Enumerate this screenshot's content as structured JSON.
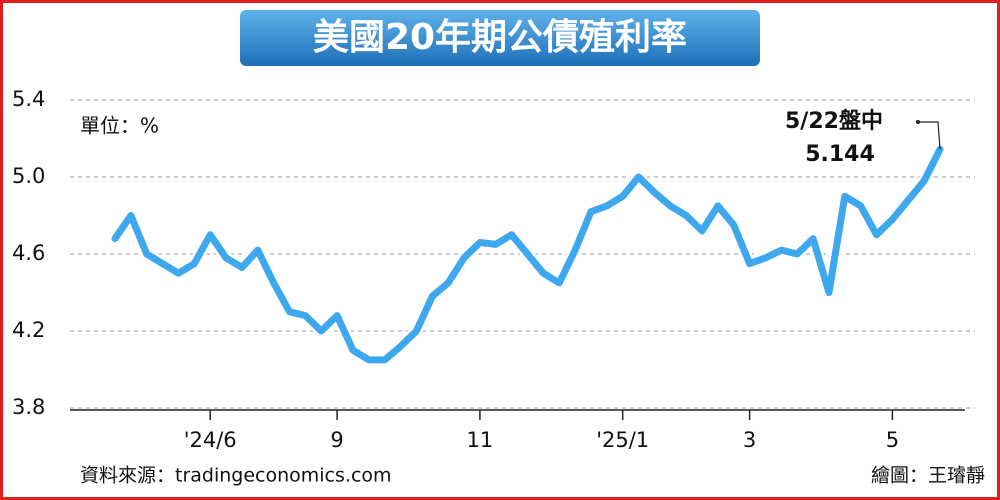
{
  "chart_data": {
    "type": "line",
    "title": "美國20年期公債殖利率",
    "unit_label": "單位：%",
    "annotation": "5/22盤中",
    "source": "資料來源：tradingeconomics.com",
    "credit": "繪圖：王璿靜",
    "categories": [
      null,
      null,
      null,
      null,
      null,
      null,
      "'24/6",
      null,
      null,
      null,
      null,
      null,
      null,
      null,
      "9",
      null,
      null,
      null,
      null,
      null,
      null,
      null,
      null,
      "11",
      null,
      null,
      null,
      null,
      null,
      null,
      null,
      null,
      "'25/1",
      null,
      null,
      null,
      null,
      null,
      null,
      null,
      "3",
      null,
      null,
      null,
      null,
      null,
      null,
      null,
      null,
      "5",
      null,
      null,
      null
    ],
    "series": [
      {
        "name": "20年期公債殖利率",
        "color": "#3ea8ef",
        "values": [
          4.68,
          4.8,
          4.6,
          4.55,
          4.5,
          4.55,
          4.7,
          4.58,
          4.53,
          4.62,
          4.45,
          4.3,
          4.28,
          4.2,
          4.28,
          4.1,
          4.05,
          4.05,
          4.12,
          4.2,
          4.38,
          4.45,
          4.58,
          4.66,
          4.65,
          4.7,
          4.6,
          4.5,
          4.45,
          4.62,
          4.82,
          4.85,
          4.9,
          5.0,
          4.92,
          4.85,
          4.8,
          4.72,
          4.85,
          4.75,
          4.55,
          4.58,
          4.62,
          4.6,
          4.68,
          4.4,
          4.9,
          4.85,
          4.7,
          4.78,
          4.88,
          4.98,
          5.144
        ]
      }
    ],
    "ylim": [
      3.8,
      5.4
    ],
    "yticks": [
      3.8,
      4.2,
      4.6,
      {
        "value": 5.0,
        "label": "5.0"
      },
      5.4
    ],
    "grid": true
  }
}
